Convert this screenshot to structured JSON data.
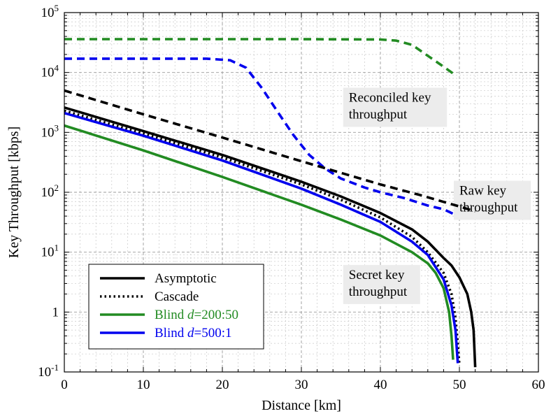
{
  "chart_data": {
    "type": "line",
    "xlabel": "Distance [km]",
    "ylabel": "Key Throughput [kbps]",
    "xlim": [
      0,
      60
    ],
    "ylim": [
      0.1,
      100000
    ],
    "yscale": "log",
    "grid": true,
    "x_ticks": [
      "0",
      "10",
      "20",
      "30",
      "40",
      "50",
      "60"
    ],
    "y_ticks": [
      {
        "base": "10",
        "exp": "-1"
      },
      {
        "base": "1",
        "exp": ""
      },
      {
        "base": "10",
        "exp": "1"
      },
      {
        "base": "10",
        "exp": "2"
      },
      {
        "base": "10",
        "exp": "3"
      },
      {
        "base": "10",
        "exp": "4"
      },
      {
        "base": "10",
        "exp": "5"
      }
    ],
    "series": [
      {
        "id": "reconciled-green",
        "color": "#228b22",
        "dash": "dashed",
        "points": [
          [
            0,
            36000
          ],
          [
            10,
            36000
          ],
          [
            20,
            36000
          ],
          [
            30,
            36000
          ],
          [
            40,
            35500
          ],
          [
            42,
            34000
          ],
          [
            44,
            29000
          ],
          [
            46,
            19000
          ],
          [
            48,
            12500
          ],
          [
            49.5,
            9000
          ]
        ]
      },
      {
        "id": "reconciled-blue",
        "color": "#0000ee",
        "dash": "dashed",
        "points": [
          [
            0,
            17000
          ],
          [
            10,
            17000
          ],
          [
            18,
            17000
          ],
          [
            21,
            16000
          ],
          [
            23,
            12000
          ],
          [
            25,
            5500
          ],
          [
            27,
            2200
          ],
          [
            29,
            900
          ],
          [
            31,
            420
          ],
          [
            33,
            250
          ],
          [
            35,
            170
          ],
          [
            38,
            120
          ],
          [
            40,
            100
          ],
          [
            43,
            80
          ],
          [
            46,
            60
          ],
          [
            48,
            52
          ],
          [
            49.5,
            42
          ]
        ]
      },
      {
        "id": "raw",
        "color": "#000000",
        "dash": "dashed",
        "points": [
          [
            0,
            5000
          ],
          [
            10,
            2000
          ],
          [
            20,
            820
          ],
          [
            30,
            330
          ],
          [
            40,
            135
          ],
          [
            45,
            90
          ],
          [
            50,
            58
          ],
          [
            52,
            48
          ]
        ]
      },
      {
        "name": "Asymptotic",
        "color": "#000000",
        "dash": "solid",
        "points": [
          [
            0,
            2600
          ],
          [
            10,
            1050
          ],
          [
            20,
            420
          ],
          [
            30,
            150
          ],
          [
            35,
            85
          ],
          [
            40,
            45
          ],
          [
            44,
            24
          ],
          [
            46,
            15
          ],
          [
            48,
            8
          ],
          [
            49,
            6
          ],
          [
            50,
            3.8
          ],
          [
            51,
            2
          ],
          [
            51.5,
            1
          ],
          [
            51.8,
            0.5
          ],
          [
            52,
            0.12
          ]
        ]
      },
      {
        "name": "Cascade",
        "color": "#000000",
        "dash": "dotted",
        "points": [
          [
            0,
            2300
          ],
          [
            10,
            950
          ],
          [
            20,
            380
          ],
          [
            30,
            135
          ],
          [
            35,
            75
          ],
          [
            40,
            38
          ],
          [
            44,
            18
          ],
          [
            46,
            10
          ],
          [
            48,
            4.5
          ],
          [
            49,
            2
          ],
          [
            49.5,
            0.8
          ],
          [
            49.8,
            0.3
          ],
          [
            50,
            0.13
          ]
        ]
      },
      {
        "name": "Blind d=200:50",
        "color": "#228b22",
        "dash": "solid",
        "legend_text": "Blind ",
        "legend_italic": "d",
        "legend_rest": "=200:50",
        "points": [
          [
            0,
            1300
          ],
          [
            10,
            500
          ],
          [
            20,
            180
          ],
          [
            30,
            62
          ],
          [
            35,
            35
          ],
          [
            40,
            19
          ],
          [
            44,
            10
          ],
          [
            46,
            6.5
          ],
          [
            47,
            4.5
          ],
          [
            48,
            2.5
          ],
          [
            48.7,
            1
          ],
          [
            49,
            0.4
          ],
          [
            49.2,
            0.16
          ]
        ]
      },
      {
        "name": "Blind d=500:1",
        "color": "#0000ee",
        "dash": "solid",
        "legend_text": "Blind ",
        "legend_italic": "d",
        "legend_rest": "=500:1",
        "points": [
          [
            0,
            2100
          ],
          [
            10,
            880
          ],
          [
            20,
            340
          ],
          [
            30,
            115
          ],
          [
            35,
            62
          ],
          [
            40,
            32
          ],
          [
            44,
            15
          ],
          [
            46,
            9
          ],
          [
            48,
            3.5
          ],
          [
            49,
            1.3
          ],
          [
            49.5,
            0.5
          ],
          [
            49.8,
            0.14
          ]
        ]
      }
    ],
    "annotations": [
      {
        "id": "reconciled",
        "lines": [
          "Reconciled key",
          "throughput"
        ],
        "x": 36,
        "y": 5000
      },
      {
        "id": "raw",
        "lines": [
          "Raw key",
          "throughput"
        ],
        "x": 50,
        "y": 140
      },
      {
        "id": "secret",
        "lines": [
          "Secret key",
          "throughput"
        ],
        "x": 36,
        "y": 5.5
      }
    ],
    "legend": {
      "placement": "bottom-left",
      "entries": [
        "Asymptotic",
        "Cascade",
        "Blind d=200:50",
        "Blind d=500:1"
      ]
    }
  }
}
